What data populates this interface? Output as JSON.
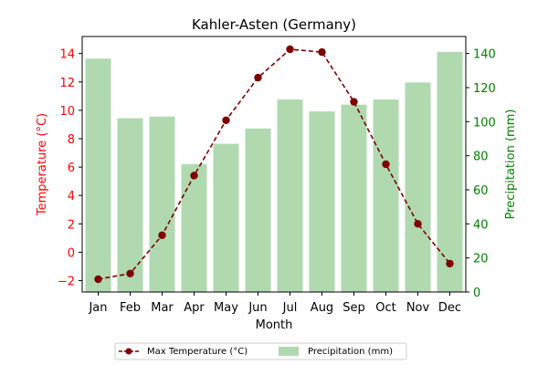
{
  "chart_data": {
    "type": "bar+line",
    "title": "Kahler-Asten (Germany)",
    "xlabel": "Month",
    "ylabel_left": "Temperature (°C)",
    "ylabel_right": "Precipitation (mm)",
    "categories": [
      "Jan",
      "Feb",
      "Mar",
      "Apr",
      "May",
      "Jun",
      "Jul",
      "Aug",
      "Sep",
      "Oct",
      "Nov",
      "Dec"
    ],
    "ylim_left": [
      -2.8,
      15.2
    ],
    "ylim_right": [
      0,
      150
    ],
    "yticks_left": [
      -2,
      0,
      2,
      4,
      6,
      8,
      10,
      12,
      14
    ],
    "yticks_right": [
      0,
      20,
      40,
      60,
      80,
      100,
      120,
      140
    ],
    "grid": false,
    "legend_position": "bottom-center",
    "series": [
      {
        "name": "Max Temperature (°C)",
        "kind": "line",
        "axis": "left",
        "color": "#800000",
        "values": [
          -1.9,
          -1.5,
          1.2,
          5.4,
          9.3,
          12.3,
          14.3,
          14.1,
          10.6,
          6.2,
          2.0,
          -0.8
        ]
      },
      {
        "name": "Precipitation (mm)",
        "kind": "bar",
        "axis": "right",
        "color": "#b0d9b0",
        "values": [
          137,
          102,
          103,
          75,
          87,
          96,
          113,
          106,
          110,
          113,
          123,
          141
        ]
      }
    ],
    "colors": {
      "left_axis": "#ff0000",
      "right_axis": "#008000"
    }
  }
}
